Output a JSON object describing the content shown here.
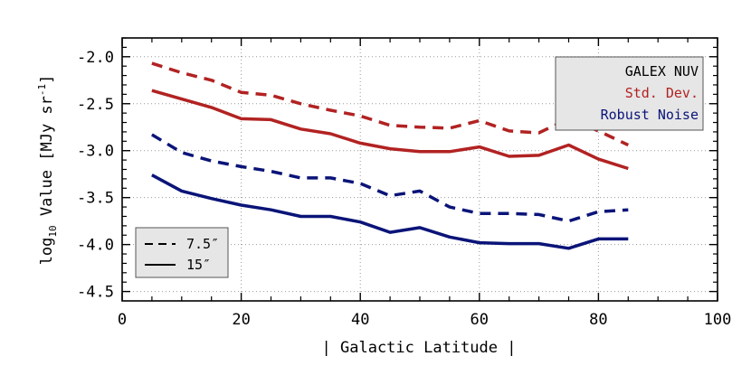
{
  "chart_data": {
    "type": "line",
    "xlabel": "| Galactic Latitude |",
    "ylabel_main": "log",
    "ylabel_sub": "10",
    "ylabel_rest": " Value [MJy sr",
    "ylabel_sup": "-1",
    "ylabel_end": "]",
    "xlim": [
      0,
      100
    ],
    "ylim": [
      -4.6,
      -1.8
    ],
    "xticks": [
      0,
      20,
      40,
      60,
      80,
      100
    ],
    "xtick_labels": [
      "0",
      "20",
      "40",
      "60",
      "80",
      "100"
    ],
    "yticks": [
      -2.0,
      -2.5,
      -3.0,
      -3.5,
      -4.0,
      -4.5
    ],
    "ytick_labels": [
      "-2.0",
      "-2.5",
      "-3.0",
      "-3.5",
      "-4.0",
      "-4.5"
    ],
    "grid": true,
    "x": [
      5,
      10,
      15,
      20,
      25,
      30,
      35,
      40,
      45,
      50,
      55,
      60,
      65,
      70,
      75,
      80,
      85
    ],
    "series": [
      {
        "quantity": "Std. Dev.",
        "scale": "7.5''",
        "style": "dashed",
        "color": "#b22222",
        "values": [
          -2.07,
          -2.17,
          -2.25,
          -2.38,
          -2.41,
          -2.5,
          -2.57,
          -2.63,
          -2.73,
          -2.75,
          -2.76,
          -2.68,
          -2.79,
          -2.81,
          -2.66,
          -2.79,
          -2.94
        ]
      },
      {
        "quantity": "Std. Dev.",
        "scale": "15''",
        "style": "solid",
        "color": "#b22222",
        "values": [
          -2.36,
          -2.45,
          -2.54,
          -2.66,
          -2.67,
          -2.77,
          -2.82,
          -2.92,
          -2.98,
          -3.01,
          -3.01,
          -2.96,
          -3.06,
          -3.05,
          -2.94,
          -3.09,
          -3.19
        ]
      },
      {
        "quantity": "Robust Noise",
        "scale": "7.5''",
        "style": "dashed",
        "color": "#0a1478",
        "values": [
          -2.83,
          -3.02,
          -3.11,
          -3.17,
          -3.22,
          -3.29,
          -3.29,
          -3.35,
          -3.48,
          -3.43,
          -3.6,
          -3.67,
          -3.67,
          -3.68,
          -3.75,
          -3.65,
          -3.63
        ]
      },
      {
        "quantity": "Robust Noise",
        "scale": "15''",
        "style": "solid",
        "color": "#0a1478",
        "values": [
          -3.26,
          -3.43,
          -3.51,
          -3.58,
          -3.63,
          -3.7,
          -3.7,
          -3.76,
          -3.87,
          -3.82,
          -3.92,
          -3.98,
          -3.99,
          -3.99,
          -4.04,
          -3.94,
          -3.94
        ]
      }
    ],
    "legend_quantity": {
      "placement": "top-right",
      "title": "GALEX NUV",
      "entries": [
        {
          "label": "Std. Dev.",
          "color": "#b22222"
        },
        {
          "label": "Robust Noise",
          "color": "#0a1478"
        }
      ]
    },
    "legend_scale": {
      "placement": "bottom-left",
      "entries": [
        {
          "label": "7.5″",
          "style": "dashed"
        },
        {
          "label": "15″",
          "style": "solid"
        }
      ]
    }
  }
}
